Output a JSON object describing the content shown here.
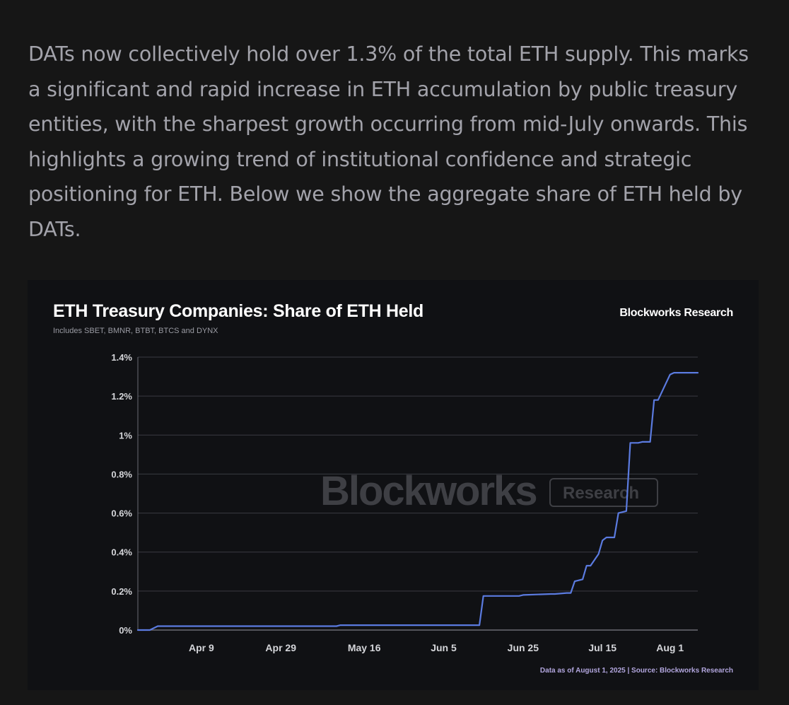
{
  "article": {
    "paragraph": "DATs now collectively hold over 1.3% of the total ETH supply. This marks a significant and rapid increase in ETH accumulation by public treasury entities, with the sharpest growth occurring from mid-July onwards. This highlights a growing trend of institutional confidence and strategic positioning for ETH. Below we show the aggregate share of ETH held by DATs."
  },
  "colors": {
    "background": "#161616",
    "card": "#101114",
    "line": "#5b7be0",
    "grid": "#3a3b42"
  },
  "chart_data": {
    "type": "line",
    "title": "ETH Treasury Companies: Share of ETH Held",
    "subtitle": "Includes SBET, BMNR, BTBT, BTCS and DYNX",
    "brand": "Blockworks Research",
    "watermark": {
      "main": "Blockworks",
      "sub": "Research"
    },
    "footer": "Data as of August 1, 2025 | Source: Blockworks Research",
    "xlabel": "",
    "ylabel": "",
    "xlim": [
      0,
      141
    ],
    "ylim": [
      0,
      1.4
    ],
    "x_unit": "days since Mar 20, 2025",
    "y_ticks": [
      {
        "value": 0,
        "label": "0%"
      },
      {
        "value": 0.2,
        "label": "0.2%"
      },
      {
        "value": 0.4,
        "label": "0.4%"
      },
      {
        "value": 0.6,
        "label": "0.6%"
      },
      {
        "value": 0.8,
        "label": "0.8%"
      },
      {
        "value": 1.0,
        "label": "1%"
      },
      {
        "value": 1.2,
        "label": "1.2%"
      },
      {
        "value": 1.4,
        "label": "1.4%"
      }
    ],
    "x_ticks": [
      {
        "value": 16,
        "label": "Apr 9"
      },
      {
        "value": 36,
        "label": "Apr 29"
      },
      {
        "value": 57,
        "label": "May 16"
      },
      {
        "value": 77,
        "label": "Jun 5"
      },
      {
        "value": 97,
        "label": "Jun 25"
      },
      {
        "value": 117,
        "label": "Jul 15"
      },
      {
        "value": 134,
        "label": "Aug 1"
      }
    ],
    "series": [
      {
        "name": "Share of ETH held",
        "x": [
          0,
          3,
          5,
          50,
          51,
          86,
          87,
          96,
          97,
          104,
          105,
          108,
          109,
          110,
          112,
          113,
          114,
          116,
          117,
          118,
          120,
          121,
          123,
          124,
          126,
          127,
          129,
          130,
          131,
          134,
          135,
          136,
          141
        ],
        "y": [
          0,
          0,
          0.02,
          0.02,
          0.025,
          0.025,
          0.175,
          0.175,
          0.18,
          0.185,
          0.185,
          0.19,
          0.19,
          0.25,
          0.26,
          0.33,
          0.33,
          0.39,
          0.46,
          0.475,
          0.475,
          0.6,
          0.61,
          0.96,
          0.96,
          0.965,
          0.965,
          1.18,
          1.18,
          1.31,
          1.32,
          1.32,
          1.32
        ]
      }
    ]
  }
}
